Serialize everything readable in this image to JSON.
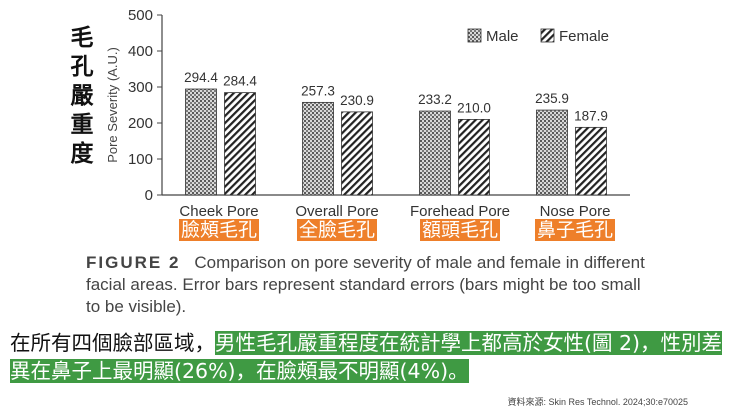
{
  "vertical_label": [
    "毛",
    "孔",
    "嚴",
    "重",
    "度"
  ],
  "chart_data": {
    "type": "bar",
    "ylabel": "Pore Severity (A.U.)",
    "ylim": [
      0,
      500
    ],
    "yticks": [
      "0",
      "100",
      "200",
      "300",
      "400",
      "500"
    ],
    "categories": [
      "Cheek Pore",
      "Overall Pore",
      "Forehead Pore",
      "Nose Pore"
    ],
    "categories_zh": [
      "臉頰毛孔",
      "全臉毛孔",
      "額頭毛孔",
      "鼻子毛孔"
    ],
    "series": [
      {
        "name": "Male",
        "values": [
          294.4,
          257.3,
          233.2,
          235.9
        ],
        "labels": [
          "294.4",
          "257.3",
          "233.2",
          "235.9"
        ],
        "pattern": "dots"
      },
      {
        "name": "Female",
        "values": [
          284.4,
          230.9,
          210.0,
          187.9
        ],
        "labels": [
          "284.4",
          "230.9",
          "210.0",
          "187.9"
        ],
        "pattern": "hatch"
      }
    ],
    "legend_position": "top-right"
  },
  "caption": {
    "figure_label": "FIGURE 2",
    "text": "Comparison on pore severity of male and female in different facial areas. Error bars represent standard errors (bars might be too small to be visible)."
  },
  "summary": {
    "part1": "在所有四個臉部區域，",
    "part2_highlight": "男性毛孔嚴重程度在統計學上都高於女性",
    "part3_highlight": "(圖 2)，性別差異在鼻子上最明顯(26%)，在臉頰最不明顯(4%)。"
  },
  "source": "資料來源: Skin Res Technol. 2024;30:e70025",
  "colors": {
    "orange": "#ee7f2a",
    "green": "#3f9a43"
  }
}
